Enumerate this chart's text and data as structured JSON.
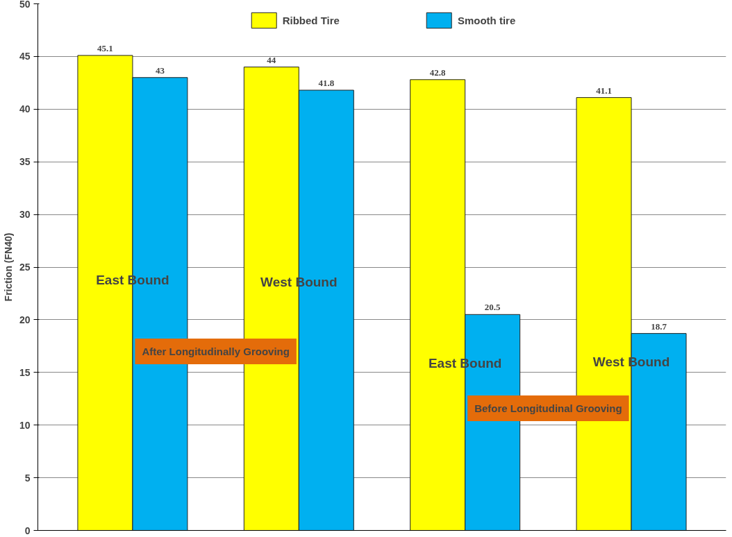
{
  "chart_data": {
    "type": "bar",
    "ylabel": "Friction (FN40)",
    "categories": [
      null,
      null,
      null,
      null
    ],
    "series": [
      {
        "name": "Ribbed Tire",
        "color": "#ffff00",
        "values": [
          45.1,
          44,
          42.8,
          41.1
        ]
      },
      {
        "name": "Smooth tire",
        "color": "#00b0f0",
        "values": [
          43,
          41.8,
          20.5,
          18.7
        ]
      }
    ],
    "ylim": [
      0,
      50
    ],
    "yticks": [
      0,
      5,
      10,
      15,
      20,
      25,
      30,
      35,
      40,
      45,
      50
    ],
    "grid": "y",
    "legend": "top",
    "data_labels": true,
    "annotations": [
      "East Bound",
      "West Bound",
      "After Longitudinally Grooving",
      "East Bound",
      "West Bound",
      "Before Longitudinal Grooving"
    ]
  }
}
